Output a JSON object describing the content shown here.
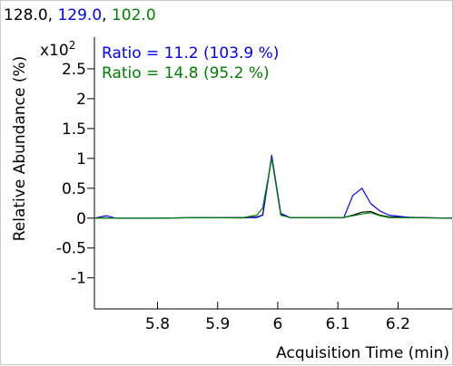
{
  "chart_data": {
    "type": "line",
    "title_parts": [
      {
        "text": "128.0",
        "color": "#000000"
      },
      {
        "text": ", ",
        "color": "#000000"
      },
      {
        "text": "129.0",
        "color": "#0000ff"
      },
      {
        "text": ", ",
        "color": "#000000"
      },
      {
        "text": "102.0",
        "color": "#008000"
      }
    ],
    "multiplier_base": "x10",
    "multiplier_exp": "2",
    "xlabel": "Acquisition Time (min)",
    "ylabel": "Relative Abundance (%)",
    "xlim": [
      5.695,
      6.29
    ],
    "ylim": [
      -1.52,
      3.03
    ],
    "x_ticks": [
      5.8,
      5.9,
      6.0,
      6.1,
      6.2
    ],
    "x_tick_labels": [
      "5.8",
      "5.9",
      "6",
      "6.1",
      "6.2"
    ],
    "y_ticks": [
      2.5,
      2,
      1.5,
      1,
      0.5,
      0,
      -0.5,
      -1
    ],
    "y_tick_labels": [
      "2.5",
      "2",
      "1.5",
      "1",
      "0.5",
      "0",
      "-0.5",
      "-1"
    ],
    "grid": false,
    "annotations": [
      {
        "text": "Ratio = 11.2 (103.9 %)",
        "color": "#0000ff"
      },
      {
        "text": "Ratio = 14.8 (95.2 %)",
        "color": "#008000"
      }
    ],
    "series": [
      {
        "ion": "128.0",
        "color": "#000000",
        "x": [
          5.695,
          5.715,
          5.73,
          5.8,
          5.88,
          5.94,
          5.965,
          5.975,
          5.99,
          6.005,
          6.02,
          6.11,
          6.125,
          6.14,
          6.155,
          6.17,
          6.185,
          6.29
        ],
        "y": [
          0,
          0.005,
          0,
          0,
          0.01,
          0.005,
          0.02,
          0.05,
          1.03,
          0.06,
          0.01,
          0.01,
          0.05,
          0.1,
          0.11,
          0.05,
          0.02,
          0
        ]
      },
      {
        "ion": "129.0",
        "color": "#0000ff",
        "x": [
          5.695,
          5.715,
          5.73,
          5.8,
          5.88,
          5.94,
          5.965,
          5.975,
          5.99,
          6.005,
          6.02,
          6.11,
          6.125,
          6.14,
          6.155,
          6.17,
          6.185,
          6.22,
          6.29
        ],
        "y": [
          0,
          0.04,
          0,
          0,
          0.01,
          0.01,
          0.01,
          0.05,
          1.05,
          0.08,
          0.01,
          0.01,
          0.38,
          0.5,
          0.24,
          0.12,
          0.05,
          0.01,
          0
        ]
      },
      {
        "ion": "102.0",
        "color": "#008000",
        "x": [
          5.695,
          5.715,
          5.73,
          5.8,
          5.88,
          5.94,
          5.965,
          5.975,
          5.99,
          6.005,
          6.02,
          6.11,
          6.125,
          6.14,
          6.155,
          6.17,
          6.185,
          6.29
        ],
        "y": [
          0,
          0.005,
          0,
          0,
          0.01,
          0.005,
          0.05,
          0.17,
          1.0,
          0.05,
          0.01,
          0.01,
          0.04,
          0.07,
          0.09,
          0.04,
          0.01,
          0
        ]
      }
    ]
  }
}
